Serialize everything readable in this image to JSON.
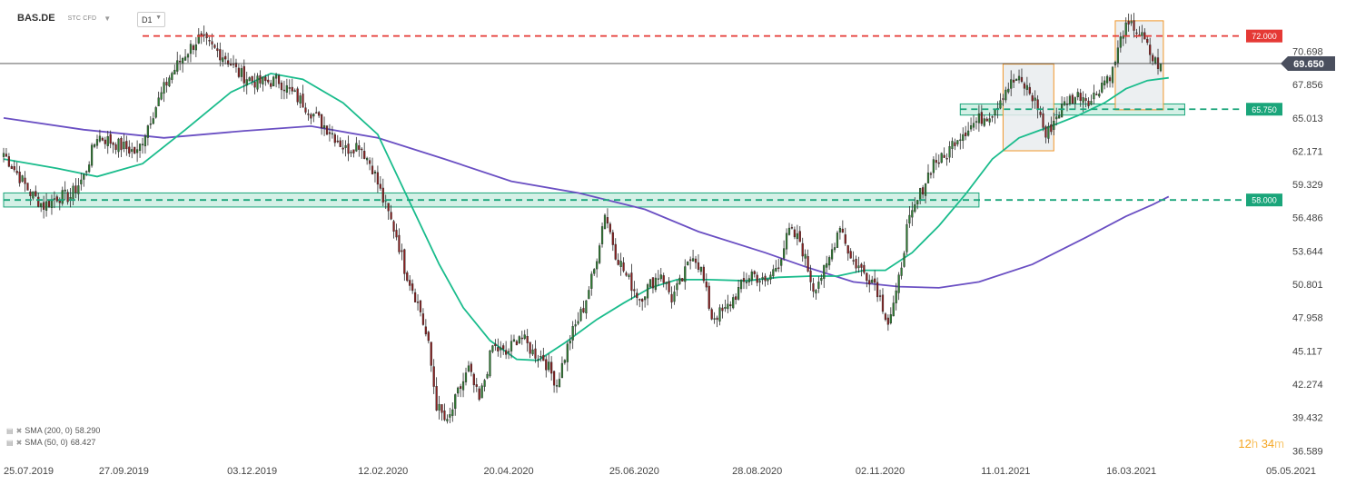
{
  "header": {
    "symbol": "BAS.DE",
    "instrument_type": "STC CFD",
    "timeframe": "D1"
  },
  "colors": {
    "up": "#2e7d32",
    "down": "#8b1f1f",
    "sma50": "#1abc8c",
    "sma200": "#6a4fc3",
    "resistance": "#e53935",
    "support": "#1aa57a",
    "current_price_bg": "#4a4f5e",
    "zone_fill": "#c9ece0",
    "box_border": "#f0962a",
    "box_fill": "#e9ecef"
  },
  "chart_data": {
    "type": "candlestick",
    "symbol": "BAS.DE",
    "timeframe": "D1",
    "y_axis": {
      "ticks": [
        70.698,
        67.856,
        65.013,
        62.171,
        59.329,
        56.486,
        53.644,
        50.801,
        47.958,
        45.117,
        42.274,
        39.432,
        36.589
      ],
      "range": [
        36.3,
        74.3
      ]
    },
    "x_axis": {
      "tick_labels": [
        "25.07.2019",
        "27.09.2019",
        "03.12.2019",
        "12.02.2020",
        "20.04.2020",
        "25.06.2020",
        "28.08.2020",
        "02.11.2020",
        "11.01.2021",
        "16.03.2021",
        "05.05.2021"
      ],
      "tick_index": [
        0,
        45,
        93,
        142,
        189,
        236,
        282,
        328,
        375,
        422,
        467
      ]
    },
    "current_price": 69.65,
    "levels": [
      {
        "label": "72.000",
        "value": 72.0,
        "kind": "resistance"
      },
      {
        "label": "65.750",
        "value": 65.75,
        "kind": "support"
      },
      {
        "label": "58.000",
        "value": 58.0,
        "kind": "support"
      }
    ],
    "zones": [
      {
        "from_index": 0,
        "to_index": 365,
        "low": 57.4,
        "high": 58.6
      },
      {
        "from_index": 358,
        "to_index": 442,
        "low": 65.25,
        "high": 66.2
      }
    ],
    "boxes": [
      {
        "from_index": 374,
        "to_index": 393,
        "low": 62.2,
        "high": 69.6
      },
      {
        "from_index": 416,
        "to_index": 434,
        "low": 65.7,
        "high": 73.3
      }
    ],
    "indicators": [
      {
        "name": "SMA",
        "period": 200,
        "shift": 0,
        "value": 58.29,
        "label": "SMA (200, 0)",
        "value_label": "58.290"
      },
      {
        "name": "SMA",
        "period": 50,
        "shift": 0,
        "value": 68.427,
        "label": "SMA (50, 0)",
        "value_label": "68.427"
      }
    ],
    "anchors": [
      [
        0,
        62.0
      ],
      [
        10,
        58.6
      ],
      [
        15,
        57.5
      ],
      [
        20,
        58.3
      ],
      [
        25,
        58.3
      ],
      [
        30,
        60.0
      ],
      [
        35,
        63.5
      ],
      [
        40,
        63.0
      ],
      [
        45,
        62.5
      ],
      [
        50,
        62.0
      ],
      [
        55,
        65.0
      ],
      [
        62,
        68.5
      ],
      [
        68,
        70.5
      ],
      [
        73,
        71.8
      ],
      [
        78,
        71.0
      ],
      [
        83,
        70.2
      ],
      [
        88,
        68.8
      ],
      [
        95,
        68.0
      ],
      [
        103,
        68.2
      ],
      [
        107,
        67.3
      ],
      [
        112,
        66.3
      ],
      [
        118,
        64.8
      ],
      [
        123,
        63.7
      ],
      [
        128,
        62.3
      ],
      [
        133,
        62.8
      ],
      [
        138,
        60.8
      ],
      [
        142,
        58.0
      ],
      [
        147,
        55.0
      ],
      [
        150,
        52.2
      ],
      [
        153,
        50.5
      ],
      [
        156,
        48.5
      ],
      [
        159,
        45.5
      ],
      [
        162,
        40.5
      ],
      [
        166,
        38.8
      ],
      [
        170,
        41.5
      ],
      [
        174,
        43.5
      ],
      [
        178,
        40.8
      ],
      [
        183,
        45.5
      ],
      [
        188,
        44.8
      ],
      [
        193,
        46.5
      ],
      [
        198,
        45.0
      ],
      [
        202,
        44.5
      ],
      [
        207,
        42.3
      ],
      [
        212,
        46.2
      ],
      [
        217,
        48.8
      ],
      [
        221,
        52.0
      ],
      [
        225,
        57.0
      ],
      [
        229,
        53.5
      ],
      [
        233,
        51.5
      ],
      [
        238,
        49.6
      ],
      [
        242,
        50.8
      ],
      [
        246,
        51.8
      ],
      [
        250,
        49.6
      ],
      [
        254,
        51.2
      ],
      [
        258,
        53.5
      ],
      [
        261,
        52.0
      ],
      [
        265,
        48.0
      ],
      [
        270,
        48.5
      ],
      [
        275,
        50.3
      ],
      [
        280,
        51.8
      ],
      [
        285,
        50.8
      ],
      [
        290,
        52.7
      ],
      [
        294,
        55.3
      ],
      [
        298,
        54.5
      ],
      [
        303,
        50.5
      ],
      [
        308,
        52.2
      ],
      [
        313,
        56.0
      ],
      [
        317,
        53.0
      ],
      [
        322,
        51.8
      ],
      [
        326,
        51.0
      ],
      [
        331,
        47.6
      ],
      [
        334,
        49.7
      ],
      [
        338,
        55.5
      ],
      [
        343,
        58.5
      ],
      [
        348,
        61.3
      ],
      [
        352,
        61.5
      ],
      [
        356,
        63.2
      ],
      [
        361,
        64.2
      ],
      [
        366,
        65.0
      ],
      [
        370,
        65.5
      ],
      [
        375,
        67.5
      ],
      [
        379,
        68.3
      ],
      [
        383,
        67.5
      ],
      [
        387,
        66.0
      ],
      [
        390,
        63.4
      ],
      [
        394,
        65.2
      ],
      [
        398,
        66.5
      ],
      [
        403,
        67.0
      ],
      [
        407,
        66.5
      ],
      [
        411,
        68.0
      ],
      [
        415,
        69.0
      ],
      [
        419,
        72.5
      ],
      [
        423,
        72.8
      ],
      [
        427,
        71.5
      ],
      [
        430,
        70.0
      ],
      [
        433,
        69.4
      ]
    ],
    "sma200_path": [
      [
        0,
        65.0
      ],
      [
        30,
        64.0
      ],
      [
        60,
        63.3
      ],
      [
        90,
        63.9
      ],
      [
        115,
        64.3
      ],
      [
        140,
        63.3
      ],
      [
        165,
        61.5
      ],
      [
        190,
        59.6
      ],
      [
        215,
        58.6
      ],
      [
        240,
        57.2
      ],
      [
        260,
        55.3
      ],
      [
        285,
        53.5
      ],
      [
        300,
        52.3
      ],
      [
        318,
        51.0
      ],
      [
        335,
        50.6
      ],
      [
        350,
        50.5
      ],
      [
        365,
        51.0
      ],
      [
        385,
        52.5
      ],
      [
        405,
        54.8
      ],
      [
        420,
        56.6
      ],
      [
        430,
        57.6
      ],
      [
        436,
        58.29
      ]
    ],
    "sma50_path": [
      [
        0,
        61.5
      ],
      [
        20,
        60.7
      ],
      [
        35,
        60.0
      ],
      [
        52,
        61.1
      ],
      [
        68,
        64.0
      ],
      [
        85,
        67.2
      ],
      [
        100,
        68.8
      ],
      [
        112,
        68.3
      ],
      [
        127,
        66.3
      ],
      [
        140,
        63.6
      ],
      [
        152,
        57.8
      ],
      [
        163,
        52.5
      ],
      [
        172,
        48.8
      ],
      [
        182,
        46.0
      ],
      [
        192,
        44.4
      ],
      [
        200,
        44.3
      ],
      [
        210,
        45.8
      ],
      [
        222,
        47.8
      ],
      [
        232,
        49.2
      ],
      [
        242,
        50.5
      ],
      [
        252,
        51.2
      ],
      [
        264,
        51.2
      ],
      [
        278,
        51.1
      ],
      [
        290,
        51.4
      ],
      [
        302,
        51.5
      ],
      [
        312,
        51.5
      ],
      [
        322,
        52.0
      ],
      [
        330,
        52.0
      ],
      [
        340,
        53.5
      ],
      [
        350,
        55.8
      ],
      [
        360,
        58.5
      ],
      [
        370,
        61.5
      ],
      [
        380,
        63.3
      ],
      [
        392,
        64.3
      ],
      [
        402,
        65.2
      ],
      [
        412,
        66.3
      ],
      [
        420,
        67.5
      ],
      [
        428,
        68.2
      ],
      [
        436,
        68.427
      ]
    ],
    "grid": false
  }
}
